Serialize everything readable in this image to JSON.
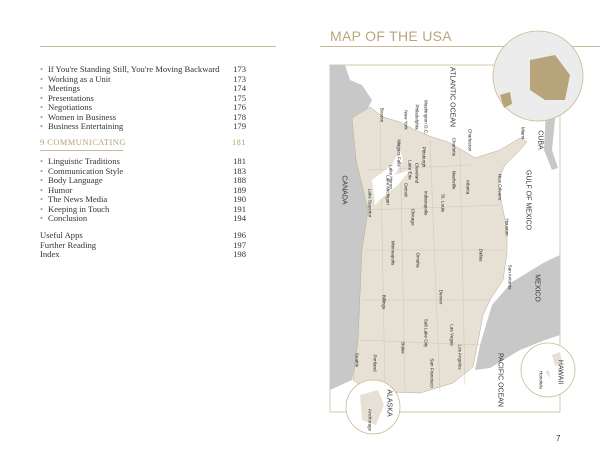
{
  "toc": {
    "items_a": [
      {
        "label": "If You're Standing Still, You're Moving Backward",
        "page": "173"
      },
      {
        "label": "Working as a Unit",
        "page": "173"
      },
      {
        "label": "Meetings",
        "page": "174"
      },
      {
        "label": "Presentations",
        "page": "175"
      },
      {
        "label": "Negotiations",
        "page": "176"
      },
      {
        "label": "Women in Business",
        "page": "178"
      },
      {
        "label": "Business Entertaining",
        "page": "179"
      }
    ],
    "chapter": {
      "label": "9 COMMUNICATING",
      "page": "181"
    },
    "items_b": [
      {
        "label": "Linguistic Traditions",
        "page": "181"
      },
      {
        "label": "Communication Style",
        "page": "183"
      },
      {
        "label": "Body Language",
        "page": "188"
      },
      {
        "label": "Humor",
        "page": "189"
      },
      {
        "label": "The News Media",
        "page": "190"
      },
      {
        "label": "Keeping in Touch",
        "page": "191"
      },
      {
        "label": "Conclusion",
        "page": "194"
      }
    ],
    "back": [
      {
        "label": "Useful Apps",
        "page": "196"
      },
      {
        "label": "Further Reading",
        "page": "197"
      },
      {
        "label": "Index",
        "page": "198"
      }
    ],
    "bullet": "•"
  },
  "map": {
    "title": "MAP OF THE USA",
    "colors": {
      "accent": "#b9a67d",
      "land": "#e6e1d4",
      "foreign": "#c8c8c8",
      "highlight": "#b8a47a"
    },
    "regions": [
      "CANADA",
      "ATLANTIC OCEAN",
      "CUBA",
      "GULF OF MEXICO",
      "MEXICO",
      "PACIFIC OCEAN",
      "ALASKA",
      "HAWAII"
    ],
    "cities": [
      "Boston",
      "New York",
      "Philadelphia",
      "Washington D.C.",
      "Charleston",
      "Charlotte",
      "Miami",
      "Pittsburgh",
      "Cleveland",
      "Lake Erie",
      "Niagara Falls",
      "Lake Huron",
      "Lake Michigan",
      "Lake Superior",
      "Detroit",
      "Nashville",
      "Atlanta",
      "New Orleans",
      "Indianapolis",
      "St. Louis",
      "Chicago",
      "Houston",
      "Minneapolis",
      "Omaha",
      "Dallas",
      "San Antonio",
      "Billings",
      "Denver",
      "Salt Lake City",
      "Las Vegas",
      "Boise",
      "Seattle",
      "Portland",
      "San Francisco",
      "Los Angeles",
      "Honolulu",
      "Anchorage"
    ]
  },
  "page_number": "7"
}
